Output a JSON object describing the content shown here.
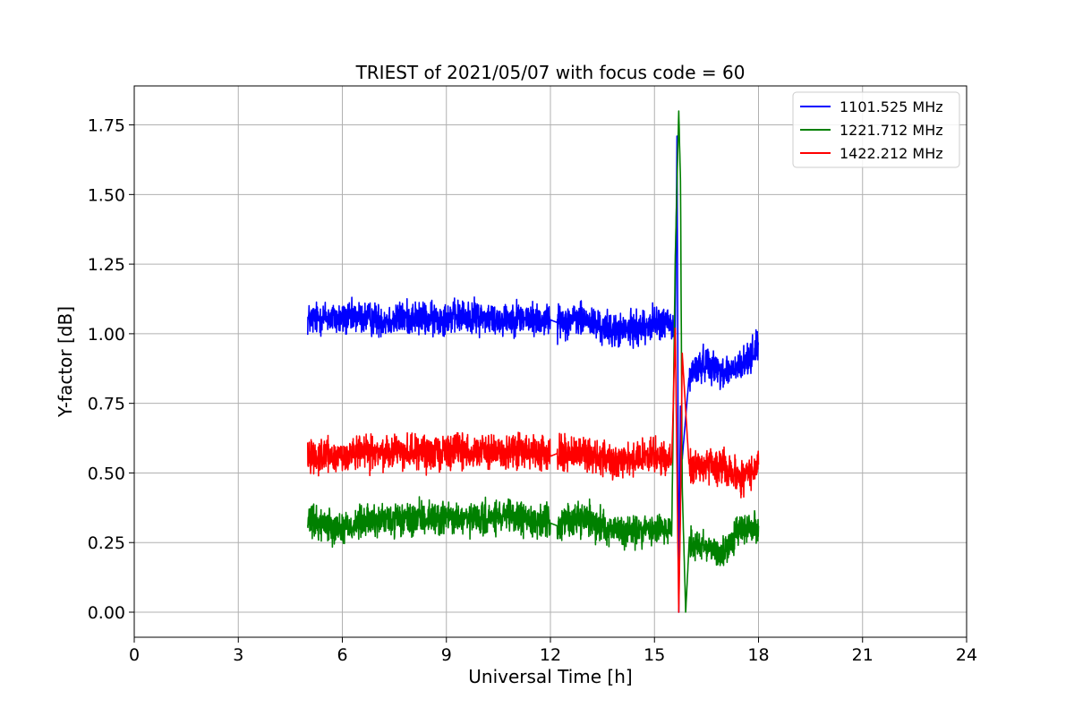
{
  "chart_data": {
    "type": "line",
    "title": "TRIEST of 2021/05/07 with focus code = 60",
    "xlabel": "Universal Time [h]",
    "ylabel": "Y-factor [dB]",
    "xlim": [
      0,
      24
    ],
    "ylim": [
      -0.09,
      1.89
    ],
    "xticks": [
      0,
      3,
      6,
      9,
      12,
      15,
      18,
      21,
      24
    ],
    "yticks": [
      0.0,
      0.25,
      0.5,
      0.75,
      1.0,
      1.25,
      1.5,
      1.75
    ],
    "xtick_labels": [
      "0",
      "3",
      "6",
      "9",
      "12",
      "15",
      "18",
      "21",
      "24"
    ],
    "ytick_labels": [
      "0.00",
      "0.25",
      "0.50",
      "0.75",
      "1.00",
      "1.25",
      "1.50",
      "1.75"
    ],
    "grid": true,
    "legend_position": "top-right",
    "series": [
      {
        "name": "1101.525 MHz",
        "color": "#0000ff",
        "x": [
          5.0,
          5.5,
          6.0,
          6.5,
          7.0,
          7.5,
          8.0,
          8.5,
          9.0,
          9.5,
          10.0,
          10.5,
          11.0,
          11.5,
          12.0,
          12.2,
          12.5,
          13.0,
          13.5,
          14.0,
          14.5,
          15.0,
          15.4,
          15.6,
          15.65,
          15.7,
          15.75,
          15.8,
          16.0,
          16.5,
          17.0,
          17.5,
          18.0
        ],
        "values": [
          1.05,
          1.06,
          1.05,
          1.06,
          1.05,
          1.05,
          1.06,
          1.05,
          1.06,
          1.06,
          1.06,
          1.05,
          1.06,
          1.05,
          1.05,
          1.04,
          1.05,
          1.05,
          1.02,
          1.01,
          1.02,
          1.04,
          1.04,
          1.0,
          1.71,
          0.0,
          0.74,
          0.55,
          0.85,
          0.9,
          0.86,
          0.88,
          0.96
        ]
      },
      {
        "name": "1221.712 MHz",
        "color": "#008000",
        "x": [
          5.0,
          5.5,
          6.0,
          6.5,
          7.0,
          7.5,
          8.0,
          8.5,
          9.0,
          9.5,
          10.0,
          10.5,
          11.0,
          11.5,
          12.0,
          12.2,
          12.5,
          13.0,
          13.5,
          14.0,
          14.5,
          15.0,
          15.5,
          15.6,
          15.7,
          15.75,
          15.8,
          15.9,
          16.0,
          16.5,
          17.0,
          17.5,
          18.0
        ],
        "values": [
          0.32,
          0.32,
          0.3,
          0.32,
          0.33,
          0.33,
          0.33,
          0.34,
          0.34,
          0.33,
          0.33,
          0.34,
          0.34,
          0.33,
          0.32,
          0.31,
          0.33,
          0.34,
          0.31,
          0.29,
          0.29,
          0.3,
          0.3,
          1.28,
          1.8,
          1.55,
          0.45,
          0.0,
          0.25,
          0.24,
          0.21,
          0.3,
          0.31
        ]
      },
      {
        "name": "1422.212 MHz",
        "color": "#ff0000",
        "x": [
          5.0,
          5.5,
          6.0,
          6.5,
          7.0,
          7.5,
          8.0,
          8.5,
          9.0,
          9.5,
          10.0,
          10.5,
          11.0,
          11.5,
          12.0,
          12.2,
          12.5,
          13.0,
          13.5,
          14.0,
          14.5,
          15.0,
          15.5,
          15.6,
          15.7,
          15.75,
          15.8,
          16.0,
          16.5,
          17.0,
          17.5,
          18.0
        ],
        "values": [
          0.57,
          0.56,
          0.56,
          0.57,
          0.57,
          0.58,
          0.58,
          0.57,
          0.58,
          0.58,
          0.58,
          0.57,
          0.58,
          0.57,
          0.56,
          0.57,
          0.57,
          0.57,
          0.55,
          0.55,
          0.55,
          0.56,
          0.55,
          1.02,
          0.0,
          0.36,
          0.93,
          0.52,
          0.53,
          0.52,
          0.48,
          0.53
        ]
      }
    ]
  }
}
